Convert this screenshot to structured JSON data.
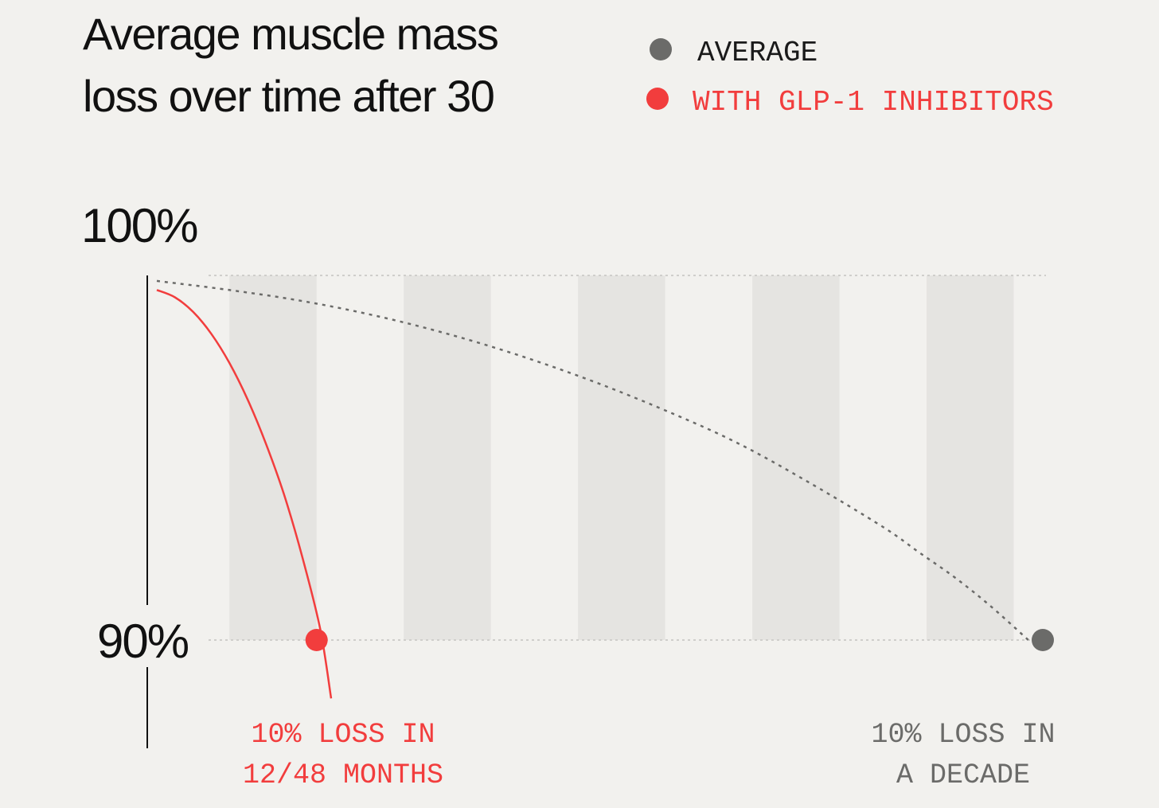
{
  "colors": {
    "background": "#f2f1ee",
    "band": "#e5e4e1",
    "average": "#6b6b69",
    "glp1": "#f23d3d",
    "axis": "#111111",
    "gridline": "#cfcecb"
  },
  "chart_data": {
    "type": "line",
    "title_lines": [
      "Average muscle mass",
      "loss over time after 30"
    ],
    "xlabel": "",
    "ylabel": "",
    "y_ticks": [
      {
        "value": 100,
        "label": "100%"
      },
      {
        "value": 90,
        "label": "90%"
      }
    ],
    "ylim": [
      88.4,
      100.2
    ],
    "xlim": [
      0,
      12.2
    ],
    "x_unit": "years",
    "grid": false,
    "legend": {
      "position": "top-right",
      "entries": [
        {
          "label": "AVERAGE",
          "color": "#6b6b69"
        },
        {
          "label": "WITH GLP-1 INHIBITORS",
          "color": "#f23d3d"
        }
      ]
    },
    "series": [
      {
        "key": "average",
        "name": "AVERAGE",
        "style": "dotted",
        "color": "#6b6b69",
        "x": [
          0,
          1,
          2,
          3,
          4,
          5,
          6,
          7,
          8,
          9,
          10,
          10.5,
          11,
          11.5,
          12
        ],
        "y": [
          99.85,
          99.6,
          99.3,
          98.9,
          98.4,
          97.8,
          97.1,
          96.3,
          95.4,
          94.3,
          93.1,
          92.4,
          91.7,
          90.9,
          90
        ]
      },
      {
        "key": "glp1",
        "name": "WITH GLP-1 INHIBITORS",
        "style": "solid",
        "color": "#f23d3d",
        "x": [
          0,
          0.25,
          0.5,
          0.75,
          1,
          1.25,
          1.5,
          1.75,
          2,
          2.25,
          2.4
        ],
        "y": [
          99.6,
          99.4,
          99.0,
          98.4,
          97.6,
          96.6,
          95.4,
          94.0,
          92.3,
          90.3,
          88.4
        ]
      }
    ],
    "highlight_points": [
      {
        "series": "glp1",
        "x": 2.2,
        "y": 90,
        "color": "#f23d3d"
      },
      {
        "series": "average",
        "x": 12.2,
        "y": 90,
        "color": "#6b6b69"
      }
    ],
    "bands": [
      {
        "x0": 1.0,
        "x1": 2.2
      },
      {
        "x0": 3.4,
        "x1": 4.6
      },
      {
        "x0": 5.8,
        "x1": 7.0
      },
      {
        "x0": 8.2,
        "x1": 9.4
      },
      {
        "x0": 10.6,
        "x1": 11.8
      }
    ],
    "annotations": [
      {
        "key": "glp1",
        "lines": [
          "10% LOSS IN",
          "12/48 MONTHS"
        ],
        "color": "#f23d3d"
      },
      {
        "key": "average",
        "lines": [
          "10% LOSS IN",
          "A DECADE"
        ],
        "color": "#6b6b69"
      }
    ]
  }
}
